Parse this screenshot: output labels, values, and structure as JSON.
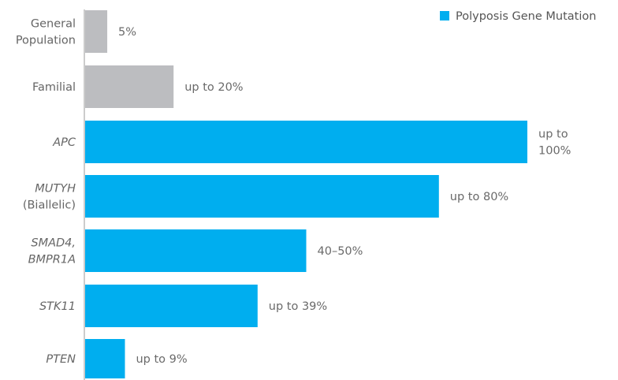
{
  "chart_data": {
    "type": "bar",
    "orientation": "horizontal",
    "grid": false,
    "legend_placement": "top-right",
    "categories": [
      {
        "lines": [
          "General",
          "Population"
        ],
        "italic": false
      },
      {
        "lines": [
          "Familial"
        ],
        "italic": false
      },
      {
        "lines": [
          "APC"
        ],
        "italic": true
      },
      {
        "lines": [
          "MUTYH",
          "(Biallelic)"
        ],
        "italic": true,
        "italic_lines": [
          0
        ]
      },
      {
        "lines": [
          "SMAD4,",
          "BMPR1A"
        ],
        "italic": true
      },
      {
        "lines": [
          "STK11"
        ],
        "italic": true
      },
      {
        "lines": [
          "PTEN"
        ],
        "italic": true
      }
    ],
    "values": [
      5,
      20,
      100,
      80,
      50,
      39,
      9
    ],
    "value_labels": [
      [
        "5%"
      ],
      [
        "up to 20%"
      ],
      [
        "up to",
        "100%"
      ],
      [
        "up to 80%"
      ],
      [
        "40–50%"
      ],
      [
        "up to 39%"
      ],
      [
        "up to 9%"
      ]
    ],
    "bar_series": [
      "general",
      "general",
      "polyposis",
      "polyposis",
      "polyposis",
      "polyposis",
      "polyposis"
    ],
    "series": [
      {
        "key": "polyposis",
        "name": "Polyposis Gene Mutation",
        "color": "#00aeef"
      },
      {
        "key": "general",
        "color": "#bcbdc0"
      }
    ],
    "axis_color": "#9a9a9a",
    "xlim": [
      0,
      100
    ]
  }
}
